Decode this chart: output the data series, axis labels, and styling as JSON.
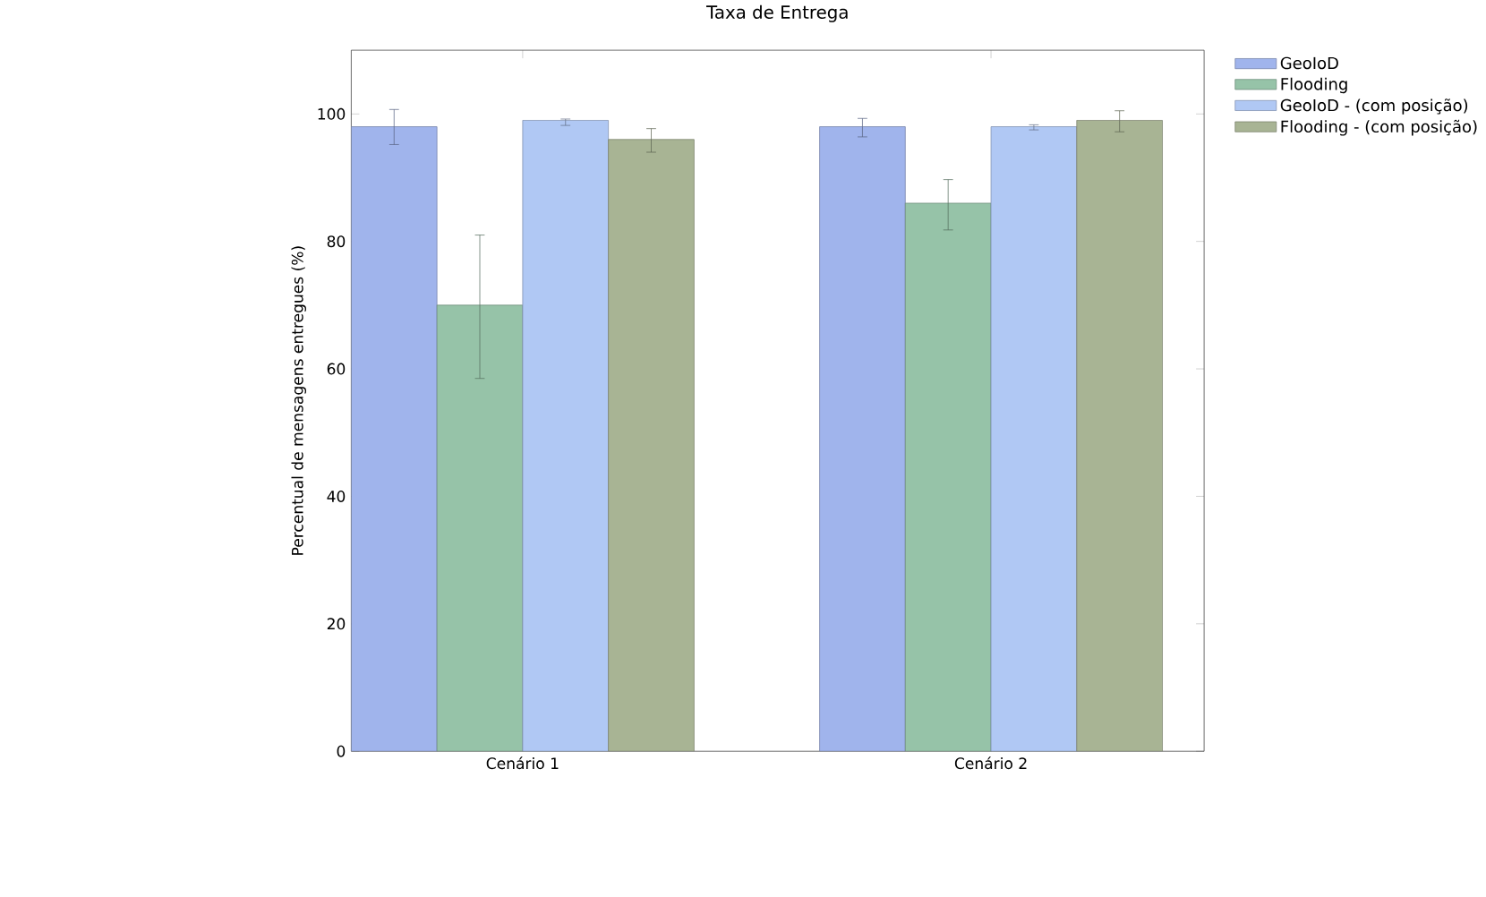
{
  "chart_data": {
    "type": "bar",
    "title": "Taxa de Entrega",
    "ylabel": "Percentual de mensagens entregues (%)",
    "categories": [
      "Cenário 1",
      "Cenário 2"
    ],
    "series": [
      {
        "name": "GeoIoD",
        "color": "#a0b4ec",
        "values": [
          98,
          98
        ],
        "errors": [
          [
            95.2,
            100.7
          ],
          [
            96.4,
            99.3
          ]
        ]
      },
      {
        "name": "Flooding",
        "color": "#96c3a8",
        "values": [
          70,
          86
        ],
        "errors": [
          [
            58.5,
            81
          ],
          [
            81.8,
            89.7
          ]
        ]
      },
      {
        "name": "GeoIoD - (com posição)",
        "color": "#b0c8f4",
        "values": [
          99,
          98
        ],
        "errors": [
          [
            98.2,
            99.2
          ],
          [
            97.5,
            98.3
          ]
        ]
      },
      {
        "name": "Flooding - (com posição)",
        "color": "#a8b494",
        "values": [
          96,
          99
        ],
        "errors": [
          [
            94,
            97.7
          ],
          [
            97.2,
            100.5
          ]
        ]
      }
    ],
    "ylim": [
      0,
      110
    ],
    "yticks": [
      0,
      20,
      40,
      60,
      80,
      100
    ],
    "grid": false,
    "legend": "top right"
  }
}
